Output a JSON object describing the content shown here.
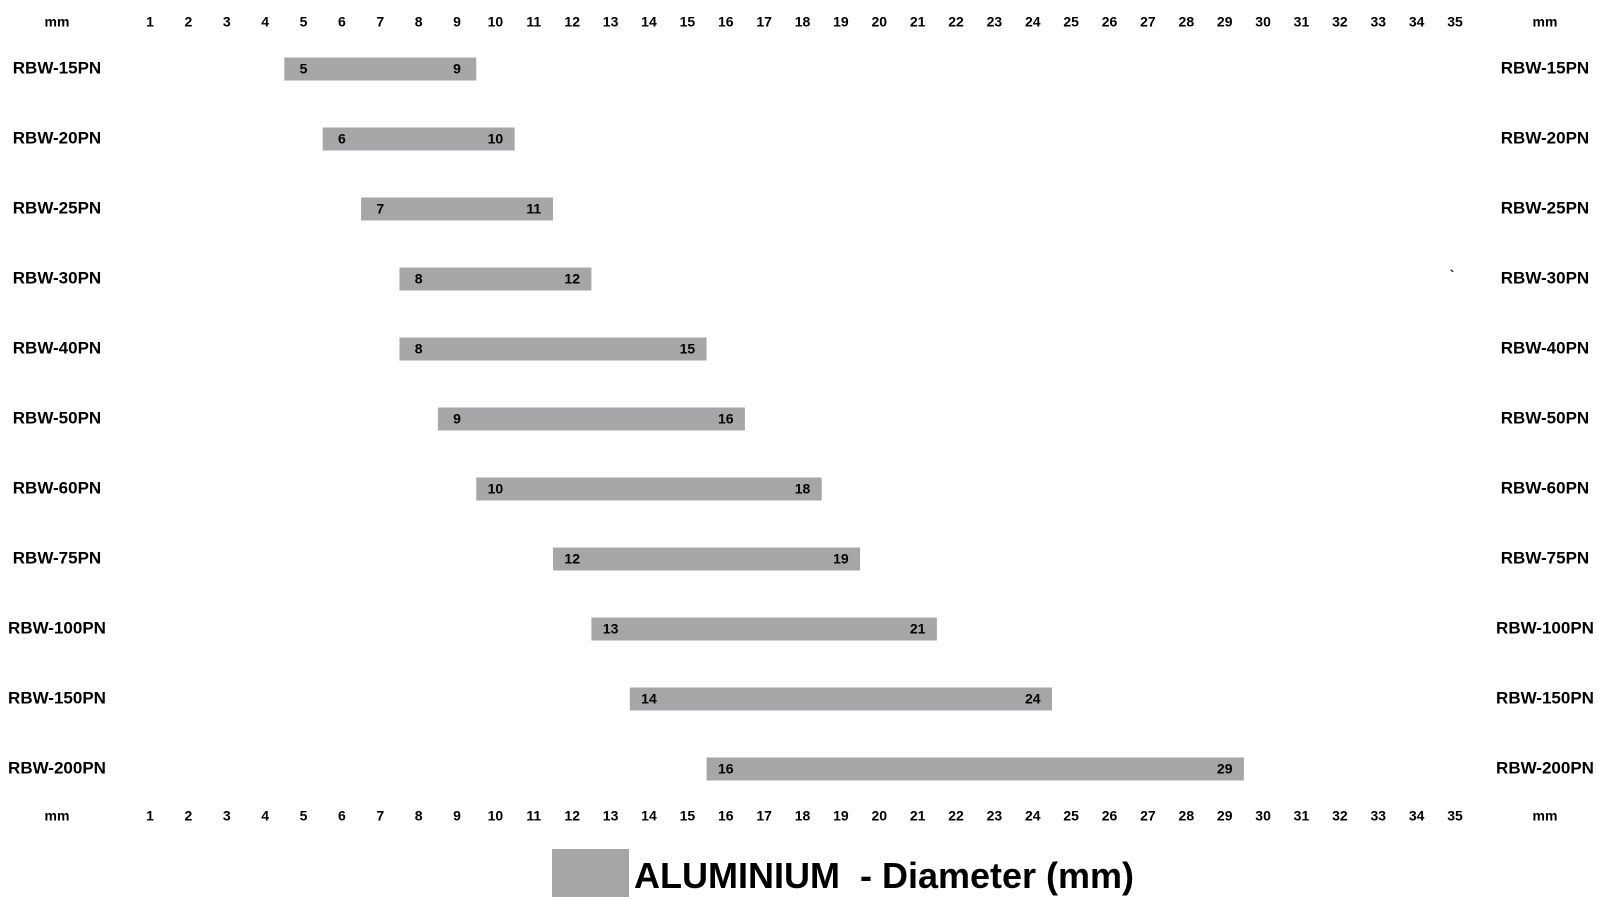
{
  "chart_data": {
    "type": "bar",
    "subtype": "range",
    "orientation": "horizontal",
    "unit_label": "mm",
    "x_ticks": [
      1,
      2,
      3,
      4,
      5,
      6,
      7,
      8,
      9,
      10,
      11,
      12,
      13,
      14,
      15,
      16,
      17,
      18,
      19,
      20,
      21,
      22,
      23,
      24,
      25,
      26,
      27,
      28,
      29,
      30,
      31,
      32,
      33,
      34,
      35
    ],
    "xlim": [
      1,
      35
    ],
    "categories": [
      "RBW-15PN",
      "RBW-20PN",
      "RBW-25PN",
      "RBW-30PN",
      "RBW-40PN",
      "RBW-50PN",
      "RBW-60PN",
      "RBW-75PN",
      "RBW-100PN",
      "RBW-150PN",
      "RBW-200PN"
    ],
    "ranges": [
      [
        5,
        9
      ],
      [
        6,
        10
      ],
      [
        7,
        11
      ],
      [
        8,
        12
      ],
      [
        8,
        15
      ],
      [
        9,
        16
      ],
      [
        10,
        18
      ],
      [
        12,
        19
      ],
      [
        13,
        21
      ],
      [
        14,
        24
      ],
      [
        16,
        29
      ]
    ],
    "stray_mark": "`",
    "legend": {
      "label": "ALUMINIUM  - Diameter (mm)",
      "placement": "bottom-center"
    },
    "bar_color": "#a6a6a8",
    "text_color": "#000000",
    "grid": false
  }
}
